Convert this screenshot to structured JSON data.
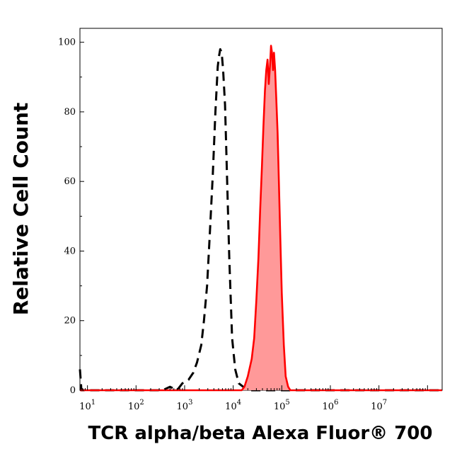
{
  "chart_data": {
    "type": "area",
    "title": "",
    "xlabel": "TCR alpha/beta Alexa Fluor® 700",
    "ylabel": "Relative Cell Count",
    "x_scale": "log",
    "xlim": [
      7,
      200000000
    ],
    "ylim": [
      0,
      104
    ],
    "grid": false,
    "legend": "none",
    "x_ticks": [
      {
        "value": 10,
        "base": "10",
        "exp": "1"
      },
      {
        "value": 100,
        "base": "10",
        "exp": "2"
      },
      {
        "value": 1000,
        "base": "10",
        "exp": "3"
      },
      {
        "value": 10000,
        "base": "10",
        "exp": "4"
      },
      {
        "value": 100000,
        "base": "10",
        "exp": "5"
      },
      {
        "value": 1000000,
        "base": "10",
        "exp": "6"
      },
      {
        "value": 10000000,
        "base": "10",
        "exp": "7"
      }
    ],
    "y_ticks": [
      {
        "value": 0,
        "label": "0"
      },
      {
        "value": 20,
        "label": "20"
      },
      {
        "value": 40,
        "label": "40"
      },
      {
        "value": 60,
        "label": "60"
      },
      {
        "value": 80,
        "label": "80"
      },
      {
        "value": 100,
        "label": "100"
      }
    ],
    "series": [
      {
        "style": "dashed",
        "color": "#000000",
        "fill": "none",
        "points": [
          [
            7,
            6
          ],
          [
            7.5,
            0
          ],
          [
            50,
            0
          ],
          [
            350,
            0
          ],
          [
            500,
            1
          ],
          [
            700,
            0
          ],
          [
            900,
            2
          ],
          [
            1200,
            3
          ],
          [
            1500,
            5
          ],
          [
            1800,
            8
          ],
          [
            2200,
            13
          ],
          [
            2500,
            20
          ],
          [
            2900,
            30
          ],
          [
            3300,
            45
          ],
          [
            3800,
            62
          ],
          [
            4300,
            80
          ],
          [
            4800,
            93
          ],
          [
            5100,
            96
          ],
          [
            5400,
            98
          ],
          [
            5800,
            97
          ],
          [
            6200,
            92
          ],
          [
            6800,
            82
          ],
          [
            7500,
            60
          ],
          [
            8300,
            38
          ],
          [
            9500,
            15
          ],
          [
            11000,
            6
          ],
          [
            13000,
            2
          ],
          [
            16000,
            1
          ],
          [
            20000,
            0
          ],
          [
            200000000,
            0
          ]
        ]
      },
      {
        "style": "solid",
        "color": "#ff0000",
        "fill": "#ff9999",
        "points": [
          [
            7,
            0
          ],
          [
            15000,
            0
          ],
          [
            17000,
            1
          ],
          [
            20000,
            4
          ],
          [
            24000,
            9
          ],
          [
            27000,
            15
          ],
          [
            30000,
            26
          ],
          [
            33000,
            38
          ],
          [
            36000,
            52
          ],
          [
            39000,
            64
          ],
          [
            42000,
            76
          ],
          [
            45000,
            86
          ],
          [
            48000,
            92
          ],
          [
            51000,
            95
          ],
          [
            54000,
            88
          ],
          [
            57000,
            93
          ],
          [
            60000,
            99
          ],
          [
            63000,
            97
          ],
          [
            66000,
            92
          ],
          [
            69000,
            97
          ],
          [
            73000,
            92
          ],
          [
            77000,
            84
          ],
          [
            82000,
            74
          ],
          [
            87000,
            60
          ],
          [
            93000,
            44
          ],
          [
            100000,
            28
          ],
          [
            110000,
            13
          ],
          [
            120000,
            4
          ],
          [
            135000,
            1
          ],
          [
            150000,
            0
          ],
          [
            200000000,
            0
          ]
        ]
      }
    ]
  }
}
